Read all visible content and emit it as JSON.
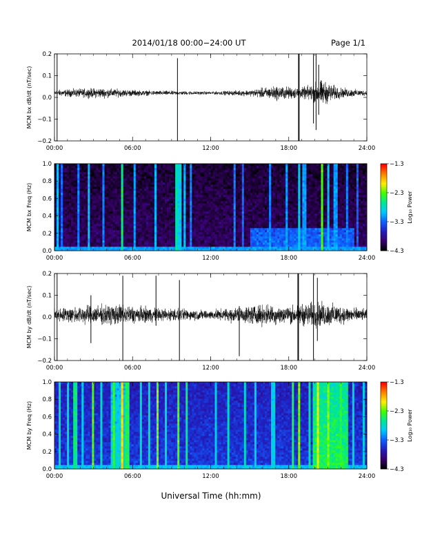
{
  "header": {
    "date_range": "2014/01/18  00:00−24:00 UT",
    "page": "Page 1/1"
  },
  "footer": {
    "xlabel": "Universal Time (hh:mm)"
  },
  "colors": {
    "background": "#ffffff",
    "trace": "#000000",
    "colormap": [
      "#000000",
      "#3a0070",
      "#2020c0",
      "#1060ff",
      "#00c8ff",
      "#00e890",
      "#40ff00",
      "#ffee00",
      "#ff8000",
      "#ff0000"
    ]
  },
  "chart_data": [
    {
      "type": "line",
      "ylabel": "MCM bx dB/dt (nT/sec)",
      "xlim": [
        0,
        24
      ],
      "ylim": [
        -0.2,
        0.2
      ],
      "x_ticks": [
        "00:00",
        "06:00",
        "12:00",
        "18:00",
        "24:00"
      ],
      "y_ticks": [
        "0.2",
        "0.1",
        "0.0",
        "−0.1",
        "−0.2"
      ],
      "baseline": 0.02,
      "noise_envelope": [
        {
          "t": 0,
          "amp": 0.012
        },
        {
          "t": 3.5,
          "amp": 0.02
        },
        {
          "t": 5,
          "amp": 0.015
        },
        {
          "t": 7,
          "amp": 0.01
        },
        {
          "t": 12,
          "amp": 0.006
        },
        {
          "t": 15,
          "amp": 0.012
        },
        {
          "t": 17,
          "amp": 0.028
        },
        {
          "t": 19,
          "amp": 0.02
        },
        {
          "t": 20.5,
          "amp": 0.05
        },
        {
          "t": 22,
          "amp": 0.02
        },
        {
          "t": 24,
          "amp": 0.01
        }
      ],
      "spikes": [
        {
          "t": 0.2,
          "min": -0.2,
          "max": 0.2
        },
        {
          "t": 9.45,
          "min": -0.2,
          "max": 0.18
        },
        {
          "t": 18.75,
          "min": -0.2,
          "max": 0.2
        },
        {
          "t": 18.8,
          "min": -0.2,
          "max": 0.2
        },
        {
          "t": 19.9,
          "min": -0.12,
          "max": 0.2
        },
        {
          "t": 20.1,
          "min": -0.15,
          "max": 0.2
        },
        {
          "t": 20.3,
          "min": -0.08,
          "max": 0.15
        }
      ]
    },
    {
      "type": "heatmap",
      "ylabel": "MCM bx Freq (Hz)",
      "xlim": [
        0,
        24
      ],
      "ylim": [
        0,
        1.0
      ],
      "x_ticks": [
        "00:00",
        "06:00",
        "12:00",
        "18:00",
        "24:00"
      ],
      "y_ticks": [
        "1.0",
        "0.8",
        "0.6",
        "0.4",
        "0.2",
        "0.0"
      ],
      "colorbar": {
        "label": "Log₁₀ Power",
        "ticks": [
          "−1.3",
          "−2.3",
          "−3.3",
          "−4.3"
        ],
        "range": [
          -4.3,
          -1.3
        ]
      },
      "background_level": -4.0,
      "low_freq_level": -3.1,
      "enhanced_intervals": [
        {
          "from": 15.0,
          "to": 23.0,
          "fmax": 0.25,
          "level": -3.3
        }
      ],
      "streaks": [
        {
          "t": 0.2,
          "level": -3.0
        },
        {
          "t": 0.6,
          "level": -3.3
        },
        {
          "t": 1.8,
          "level": -3.2
        },
        {
          "t": 2.6,
          "level": -3.0
        },
        {
          "t": 3.7,
          "level": -3.2
        },
        {
          "t": 5.2,
          "level": -2.6
        },
        {
          "t": 6.1,
          "level": -3.1
        },
        {
          "t": 7.7,
          "level": -3.0
        },
        {
          "t": 9.4,
          "level": -2.7
        },
        {
          "t": 9.6,
          "level": -2.9
        },
        {
          "t": 10.0,
          "level": -3.0
        },
        {
          "t": 10.5,
          "level": -3.2
        },
        {
          "t": 13.8,
          "level": -3.2
        },
        {
          "t": 14.5,
          "level": -3.3
        },
        {
          "t": 16.6,
          "level": -3.2
        },
        {
          "t": 17.8,
          "level": -3.1
        },
        {
          "t": 18.8,
          "level": -2.9
        },
        {
          "t": 19.2,
          "level": -3.1
        },
        {
          "t": 20.5,
          "level": -2.3
        },
        {
          "t": 21.0,
          "level": -3.0
        },
        {
          "t": 21.6,
          "level": -3.1
        },
        {
          "t": 22.5,
          "level": -3.2
        },
        {
          "t": 23.3,
          "level": -3.3
        }
      ]
    },
    {
      "type": "line",
      "ylabel": "MCM by dB/dt (nT/sec)",
      "xlim": [
        0,
        24
      ],
      "ylim": [
        -0.2,
        0.2
      ],
      "x_ticks": [
        "00:00",
        "06:00",
        "12:00",
        "18:00",
        "24:00"
      ],
      "y_ticks": [
        "0.2",
        "0.1",
        "0.0",
        "−0.1",
        "−0.2"
      ],
      "baseline": 0.01,
      "noise_envelope": [
        {
          "t": 0,
          "amp": 0.025
        },
        {
          "t": 2,
          "amp": 0.035
        },
        {
          "t": 5,
          "amp": 0.04
        },
        {
          "t": 7,
          "amp": 0.03
        },
        {
          "t": 9,
          "amp": 0.025
        },
        {
          "t": 12,
          "amp": 0.018
        },
        {
          "t": 14,
          "amp": 0.03
        },
        {
          "t": 16,
          "amp": 0.04
        },
        {
          "t": 18,
          "amp": 0.035
        },
        {
          "t": 20,
          "amp": 0.05
        },
        {
          "t": 21,
          "amp": 0.045
        },
        {
          "t": 24,
          "amp": 0.02
        }
      ],
      "spikes": [
        {
          "t": 0.2,
          "min": -0.2,
          "max": 0.2
        },
        {
          "t": 2.8,
          "min": -0.12,
          "max": 0.1
        },
        {
          "t": 5.25,
          "min": -0.2,
          "max": 0.19
        },
        {
          "t": 7.8,
          "min": -0.04,
          "max": 0.19
        },
        {
          "t": 9.6,
          "min": -0.2,
          "max": 0.17
        },
        {
          "t": 14.2,
          "min": -0.18,
          "max": 0.05
        },
        {
          "t": 18.7,
          "min": -0.2,
          "max": 0.2
        },
        {
          "t": 18.75,
          "min": -0.2,
          "max": 0.2
        },
        {
          "t": 19.9,
          "min": -0.2,
          "max": 0.2
        },
        {
          "t": 20.2,
          "min": -0.11,
          "max": 0.18
        }
      ]
    },
    {
      "type": "heatmap",
      "ylabel": "MCM by Freq (Hz)",
      "xlim": [
        0,
        24
      ],
      "ylim": [
        0,
        1.0
      ],
      "x_ticks": [
        "00:00",
        "06:00",
        "12:00",
        "18:00",
        "24:00"
      ],
      "y_ticks": [
        "1.0",
        "0.8",
        "0.6",
        "0.4",
        "0.2",
        "0.0"
      ],
      "colorbar": {
        "label": "Log₁₀ Power",
        "ticks": [
          "−1.3",
          "−2.3",
          "−3.3",
          "−4.3"
        ],
        "range": [
          -4.3,
          -1.3
        ]
      },
      "background_level": -3.5,
      "low_freq_level": -3.0,
      "enhanced_intervals": [
        {
          "from": 4.3,
          "to": 5.8,
          "fmax": 1.0,
          "level": -2.8
        },
        {
          "from": 19.8,
          "to": 22.6,
          "fmax": 1.0,
          "level": -2.5
        }
      ],
      "streaks": [
        {
          "t": 0.4,
          "level": -2.7
        },
        {
          "t": 1.1,
          "level": -2.8
        },
        {
          "t": 1.6,
          "level": -2.6
        },
        {
          "t": 2.2,
          "level": -2.9
        },
        {
          "t": 2.9,
          "level": -2.3
        },
        {
          "t": 3.6,
          "level": -2.8
        },
        {
          "t": 4.6,
          "level": -2.4
        },
        {
          "t": 5.2,
          "level": -1.9
        },
        {
          "t": 5.6,
          "level": -2.5
        },
        {
          "t": 6.6,
          "level": -2.8
        },
        {
          "t": 7.3,
          "level": -2.7
        },
        {
          "t": 7.9,
          "level": -2.2
        },
        {
          "t": 8.6,
          "level": -2.8
        },
        {
          "t": 9.5,
          "level": -2.3
        },
        {
          "t": 10.2,
          "level": -2.6
        },
        {
          "t": 12.4,
          "level": -2.9
        },
        {
          "t": 13.4,
          "level": -2.8
        },
        {
          "t": 14.6,
          "level": -2.8
        },
        {
          "t": 15.5,
          "level": -2.9
        },
        {
          "t": 16.8,
          "level": -2.9
        },
        {
          "t": 18.3,
          "level": -2.5
        },
        {
          "t": 18.8,
          "level": -2.2
        },
        {
          "t": 19.6,
          "level": -2.7
        },
        {
          "t": 20.3,
          "level": -2.0
        },
        {
          "t": 21.1,
          "level": -2.2
        },
        {
          "t": 22.0,
          "level": -2.4
        },
        {
          "t": 22.9,
          "level": -2.8
        },
        {
          "t": 23.7,
          "level": -2.9
        }
      ]
    }
  ]
}
